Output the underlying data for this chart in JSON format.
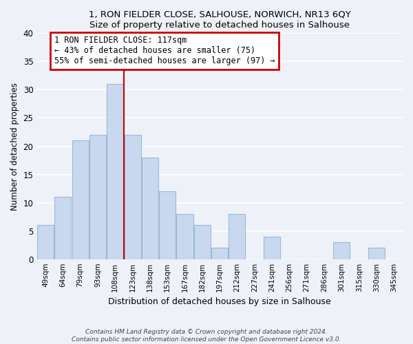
{
  "title": "1, RON FIELDER CLOSE, SALHOUSE, NORWICH, NR13 6QY",
  "subtitle": "Size of property relative to detached houses in Salhouse",
  "xlabel": "Distribution of detached houses by size in Salhouse",
  "ylabel": "Number of detached properties",
  "bar_labels": [
    "49sqm",
    "64sqm",
    "79sqm",
    "93sqm",
    "108sqm",
    "123sqm",
    "138sqm",
    "153sqm",
    "167sqm",
    "182sqm",
    "197sqm",
    "212sqm",
    "227sqm",
    "241sqm",
    "256sqm",
    "271sqm",
    "286sqm",
    "301sqm",
    "315sqm",
    "330sqm",
    "345sqm"
  ],
  "bar_values": [
    6,
    11,
    21,
    22,
    31,
    22,
    18,
    12,
    8,
    6,
    2,
    8,
    0,
    4,
    0,
    0,
    0,
    3,
    0,
    2,
    0
  ],
  "bar_color": "#c8d8ee",
  "bar_edge_color": "#9ab8d8",
  "vline_x_index": 4,
  "vline_color": "#cc0000",
  "annotation_title": "1 RON FIELDER CLOSE: 117sqm",
  "annotation_line1": "← 43% of detached houses are smaller (75)",
  "annotation_line2": "55% of semi-detached houses are larger (97) →",
  "annotation_box_color": "#ffffff",
  "annotation_box_edge": "#cc0000",
  "ylim": [
    0,
    40
  ],
  "yticks": [
    0,
    5,
    10,
    15,
    20,
    25,
    30,
    35,
    40
  ],
  "footer1": "Contains HM Land Registry data © Crown copyright and database right 2024.",
  "footer2": "Contains public sector information licensed under the Open Government Licence v3.0.",
  "bg_color": "#eef2f8",
  "plot_bg_color": "#eef2f8",
  "grid_color": "#ffffff"
}
